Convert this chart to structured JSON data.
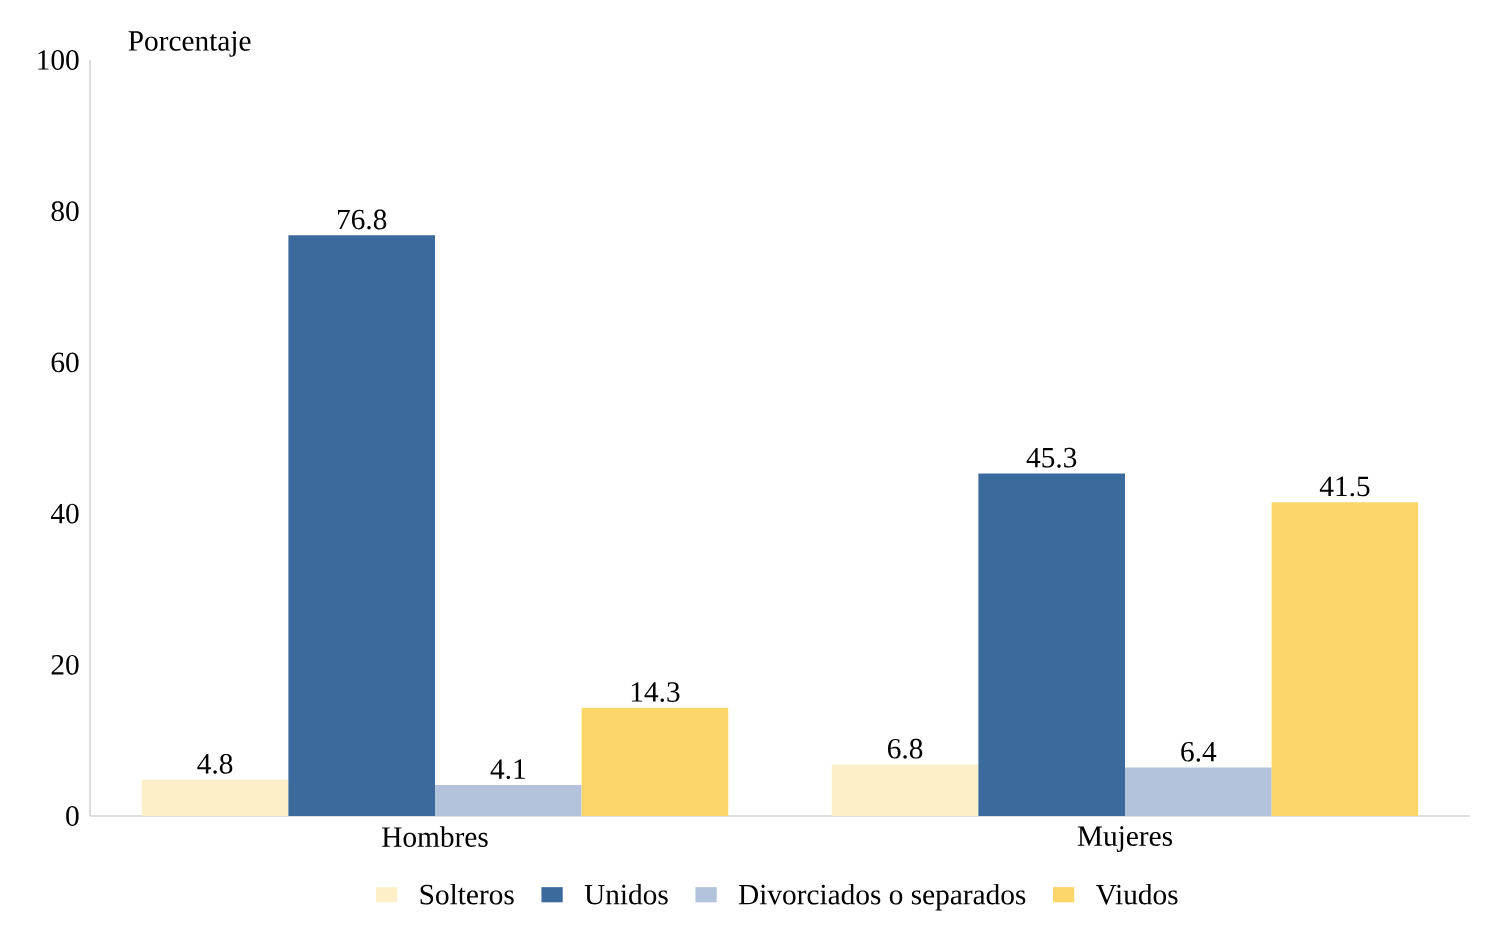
{
  "chart_data": {
    "type": "bar",
    "ylabel": "Porcentaje",
    "categories": [
      "Hombres",
      "Mujeres"
    ],
    "series": [
      {
        "name": "Solteros",
        "color": "#fdf0c8",
        "values": [
          4.8,
          6.8
        ]
      },
      {
        "name": "Unidos",
        "color": "#3b6a9c",
        "values": [
          76.8,
          45.3
        ]
      },
      {
        "name": "Divorciados o separados",
        "color": "#b4c3dc",
        "values": [
          4.1,
          6.4
        ]
      },
      {
        "name": "Viudos",
        "color": "#fdd66a",
        "values": [
          14.3,
          41.5
        ]
      }
    ],
    "ylim": [
      0,
      100
    ],
    "yticks": [
      0,
      20,
      40,
      60,
      80,
      100
    ],
    "data_labels": true,
    "legend": "bottom",
    "grid": false
  }
}
